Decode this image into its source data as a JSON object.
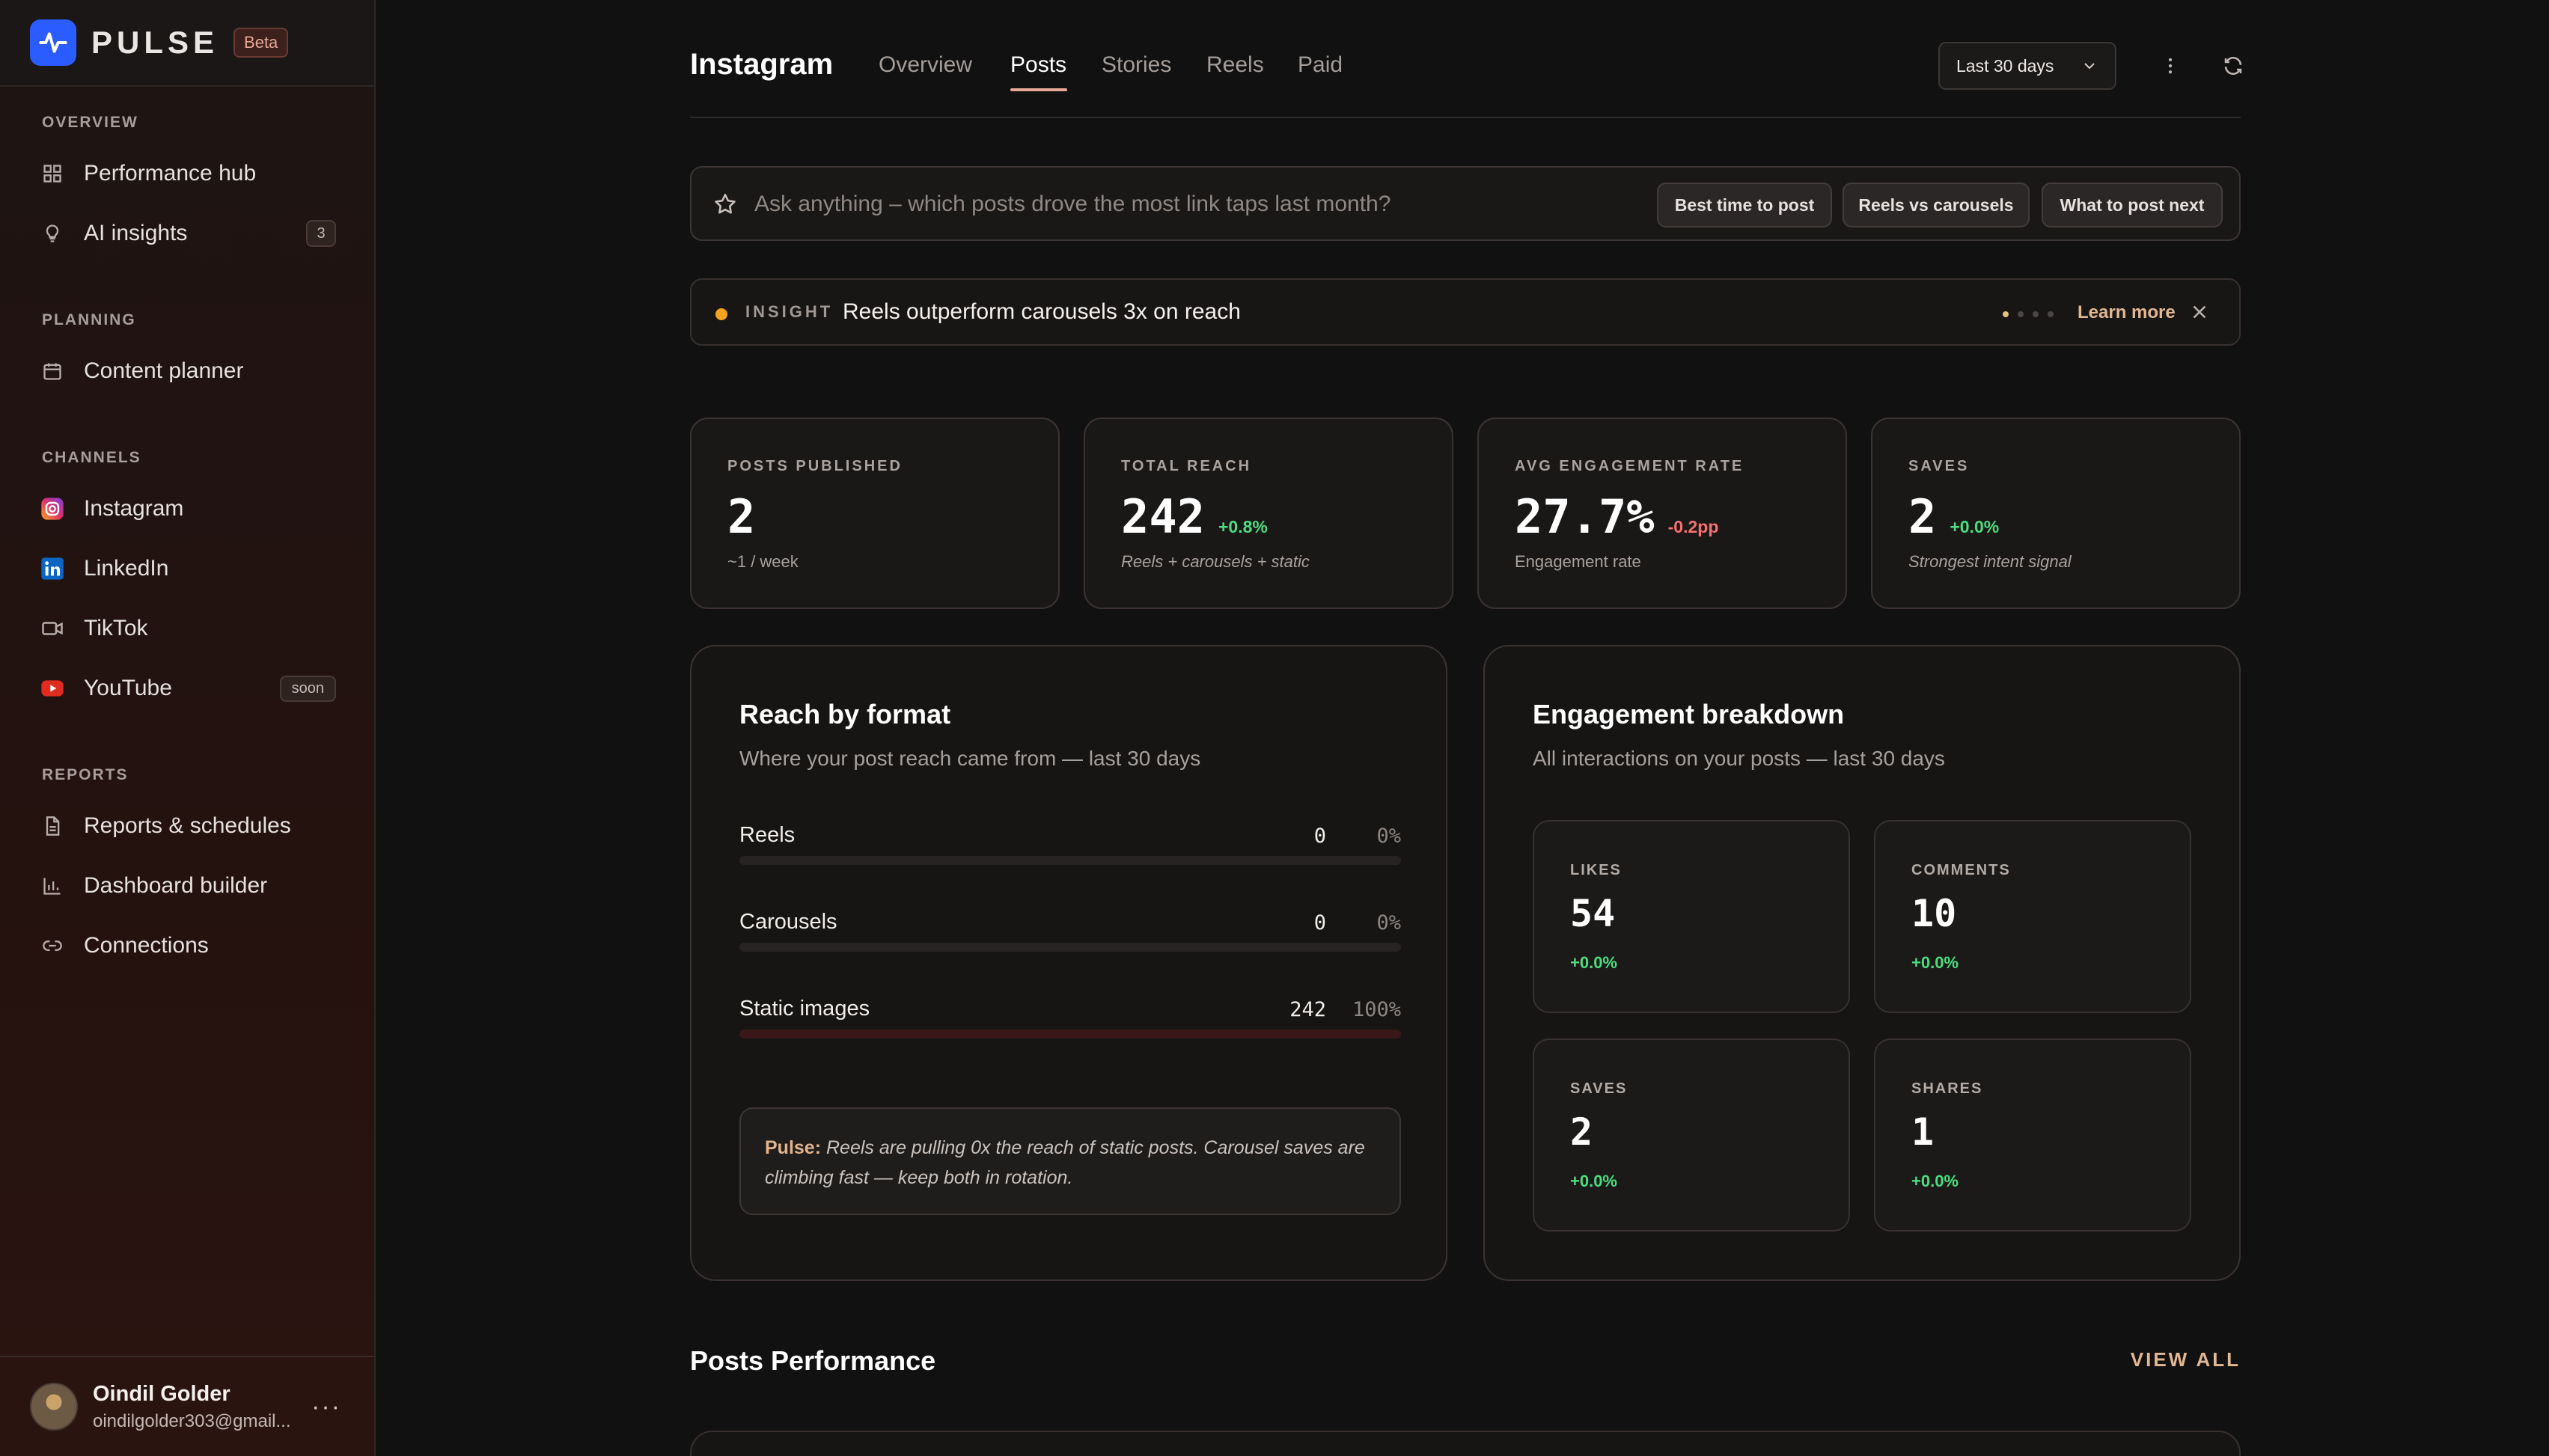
{
  "brand": {
    "name": "PULSE",
    "badge": "Beta"
  },
  "sidebar": {
    "sections": [
      {
        "title": "OVERVIEW",
        "items": [
          {
            "label": "Performance hub",
            "icon": "grid-icon"
          },
          {
            "label": "AI insights",
            "icon": "lightbulb-icon",
            "count": "3"
          }
        ]
      },
      {
        "title": "PLANNING",
        "items": [
          {
            "label": "Content planner",
            "icon": "calendar-icon"
          }
        ]
      },
      {
        "title": "CHANNELS",
        "items": [
          {
            "label": "Instagram",
            "icon": "instagram-icon"
          },
          {
            "label": "LinkedIn",
            "icon": "linkedin-icon"
          },
          {
            "label": "TikTok",
            "icon": "video-icon"
          },
          {
            "label": "YouTube",
            "icon": "youtube-icon",
            "badge": "soon"
          }
        ]
      },
      {
        "title": "REPORTS",
        "items": [
          {
            "label": "Reports & schedules",
            "icon": "document-icon"
          },
          {
            "label": "Dashboard builder",
            "icon": "bar-chart-icon"
          },
          {
            "label": "Connections",
            "icon": "link-icon"
          }
        ]
      }
    ],
    "user": {
      "name": "Oindil Golder",
      "email": "oindilgolder303@gmail...",
      "more": "···"
    }
  },
  "header": {
    "title": "Instagram",
    "tabs": [
      "Overview",
      "Posts",
      "Stories",
      "Reels",
      "Paid"
    ],
    "active_tab": "Posts",
    "range": "Last 30 days"
  },
  "ask": {
    "placeholder": "Ask anything – which posts drove the most link taps last month?",
    "chips": [
      "Best time to post",
      "Reels vs carousels",
      "What to post next"
    ]
  },
  "insight": {
    "tag": "INSIGHT",
    "text": "Reels outperform carousels 3x on reach",
    "page": 1,
    "pages": 4,
    "learn_more": "Learn more"
  },
  "stats": [
    {
      "label": "POSTS PUBLISHED",
      "value": "2",
      "delta": "",
      "sub": "~1 / week"
    },
    {
      "label": "TOTAL REACH",
      "value": "242",
      "delta": "+0.8%",
      "sub": "Reels + carousels + static"
    },
    {
      "label": "AVG ENGAGEMENT RATE",
      "value": "27.7%",
      "delta": "-0.2pp",
      "sub": "Engagement rate"
    },
    {
      "label": "SAVES",
      "value": "2",
      "delta": "+0.0%",
      "sub": "Strongest intent signal"
    }
  ],
  "reach_by_format": {
    "title": "Reach by format",
    "subtitle": "Where your post reach came from — last 30 days",
    "rows": [
      {
        "name": "Reels",
        "value": "0",
        "pct": "0%",
        "share": 0
      },
      {
        "name": "Carousels",
        "value": "0",
        "pct": "0%",
        "share": 0
      },
      {
        "name": "Static images",
        "value": "242",
        "pct": "100%",
        "share": 100
      }
    ],
    "note_label": "Pulse:",
    "note_text": "Reels are pulling 0x the reach of static posts. Carousel saves are climbing fast — keep both in rotation."
  },
  "engagement": {
    "title": "Engagement breakdown",
    "subtitle": "All interactions on your posts — last 30 days",
    "cards": [
      {
        "label": "LIKES",
        "value": "54",
        "delta": "+0.0%"
      },
      {
        "label": "COMMENTS",
        "value": "10",
        "delta": "+0.0%"
      },
      {
        "label": "SAVES",
        "value": "2",
        "delta": "+0.0%"
      },
      {
        "label": "SHARES",
        "value": "1",
        "delta": "+0.0%"
      }
    ]
  },
  "posts_performance": {
    "title": "Posts Performance",
    "view_all": "VIEW ALL"
  },
  "colors": {
    "accent": "#e8a898",
    "brand_blue": "#2a5cff",
    "positive": "#4ade80",
    "negative": "#f87171",
    "insight_dot": "#f2a31f"
  }
}
